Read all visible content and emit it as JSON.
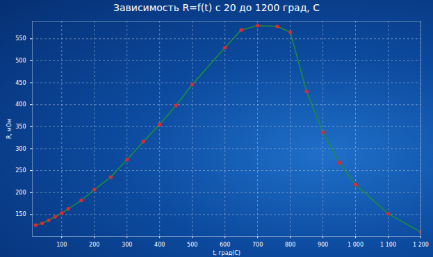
{
  "chart_data": {
    "type": "line",
    "title": "Зависимость R=f(t) с 20 до 1200 град, С",
    "x_label": "t, град(С)",
    "y_label": "R, мОм",
    "x": [
      20,
      40,
      60,
      80,
      100,
      120,
      160,
      200,
      250,
      300,
      350,
      400,
      450,
      500,
      600,
      650,
      700,
      760,
      800,
      850,
      900,
      950,
      1000,
      1100,
      1200
    ],
    "series": [
      {
        "name": "R",
        "color": "#1e8c3a",
        "marker": "circle",
        "line_style": "solid",
        "values": [
          126,
          130,
          137,
          145,
          153,
          163,
          182,
          207,
          235,
          275,
          316,
          355,
          398,
          446,
          530,
          570,
          580,
          578,
          565,
          430,
          337,
          268,
          218,
          152,
          110
        ]
      }
    ],
    "xlim": [
      10,
      1200
    ],
    "ylim": [
      100,
      590
    ],
    "xticks": [
      100,
      200,
      300,
      400,
      500,
      600,
      700,
      800,
      900,
      {
        "value": 1000,
        "label": "1 000"
      },
      {
        "value": 1100,
        "label": "1 100"
      },
      {
        "value": 1200,
        "label": "1 200"
      }
    ],
    "yticks": [
      150,
      200,
      250,
      300,
      350,
      400,
      450,
      500,
      550
    ],
    "grid": true
  }
}
